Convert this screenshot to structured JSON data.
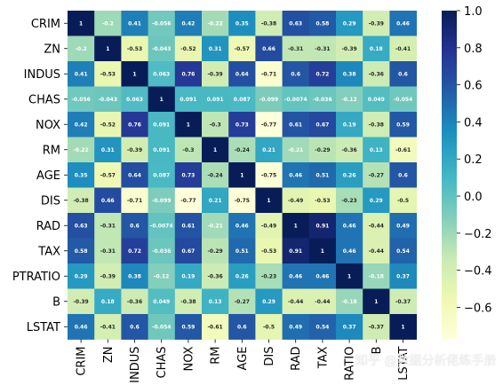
{
  "chart_data": {
    "type": "heatmap",
    "title": "",
    "xlabel": "",
    "ylabel": "",
    "colormap": "YlGnBu",
    "annot": true,
    "vmin": -0.77,
    "vmax": 1.0,
    "colorbar_ticks": [
      "1.0",
      "0.8",
      "0.6",
      "0.4",
      "0.2",
      "0.0",
      "−0.2",
      "−0.4",
      "−0.6"
    ],
    "colorbar_tick_values": [
      1.0,
      0.8,
      0.6,
      0.4,
      0.2,
      0.0,
      -0.2,
      -0.4,
      -0.6
    ],
    "labels": [
      "CRIM",
      "ZN",
      "INDUS",
      "CHAS",
      "NOX",
      "RM",
      "AGE",
      "DIS",
      "RAD",
      "TAX",
      "PTRATIO",
      "B",
      "LSTAT"
    ],
    "x_tick_labels_shown": [
      "CRIM",
      "ZN",
      "INDUS",
      "CHAS",
      "NOX",
      "RM",
      "AGE",
      "DIS",
      "RAD",
      "TAX",
      "RATIO",
      "B",
      "LSTAT"
    ],
    "matrix": [
      [
        1,
        -0.2,
        0.41,
        -0.056,
        0.42,
        -0.22,
        0.35,
        -0.38,
        0.63,
        0.58,
        0.29,
        -0.39,
        0.46
      ],
      [
        -0.2,
        1,
        -0.53,
        -0.043,
        -0.52,
        0.31,
        -0.57,
        0.66,
        -0.31,
        -0.31,
        -0.39,
        0.18,
        -0.41
      ],
      [
        0.41,
        -0.53,
        1,
        0.063,
        0.76,
        -0.39,
        0.64,
        -0.71,
        0.6,
        0.72,
        0.38,
        -0.36,
        0.6
      ],
      [
        -0.056,
        -0.043,
        0.063,
        1,
        0.091,
        0.091,
        0.087,
        -0.099,
        -0.0074,
        -0.036,
        -0.12,
        0.049,
        -0.054
      ],
      [
        0.42,
        -0.52,
        0.76,
        0.091,
        1,
        -0.3,
        0.73,
        -0.77,
        0.61,
        0.67,
        0.19,
        -0.38,
        0.59
      ],
      [
        -0.22,
        0.31,
        -0.39,
        0.091,
        -0.3,
        1,
        -0.24,
        0.21,
        -0.21,
        -0.29,
        -0.36,
        0.13,
        -0.61
      ],
      [
        0.35,
        -0.57,
        0.64,
        0.087,
        0.73,
        -0.24,
        1,
        -0.75,
        0.46,
        0.51,
        0.26,
        -0.27,
        0.6
      ],
      [
        -0.38,
        0.66,
        -0.71,
        -0.099,
        -0.77,
        0.21,
        -0.75,
        1,
        -0.49,
        -0.53,
        -0.23,
        0.29,
        -0.5
      ],
      [
        0.63,
        -0.31,
        0.6,
        -0.0074,
        0.61,
        -0.21,
        0.46,
        -0.49,
        1,
        0.91,
        0.46,
        -0.44,
        0.49
      ],
      [
        0.58,
        -0.31,
        0.72,
        -0.036,
        0.67,
        -0.29,
        0.51,
        -0.53,
        0.91,
        1,
        0.46,
        -0.44,
        0.54
      ],
      [
        0.29,
        -0.39,
        0.38,
        -0.12,
        0.19,
        -0.36,
        0.26,
        -0.23,
        0.46,
        0.46,
        1,
        -0.18,
        0.37
      ],
      [
        -0.39,
        0.18,
        -0.36,
        0.049,
        -0.38,
        0.13,
        -0.27,
        0.29,
        -0.44,
        -0.44,
        -0.18,
        1,
        -0.37
      ],
      [
        0.46,
        -0.41,
        0.6,
        -0.054,
        0.59,
        -0.61,
        0.6,
        -0.5,
        0.49,
        0.54,
        0.37,
        -0.37,
        1
      ]
    ]
  },
  "watermark": "知乎 @数据分析佬练手册"
}
